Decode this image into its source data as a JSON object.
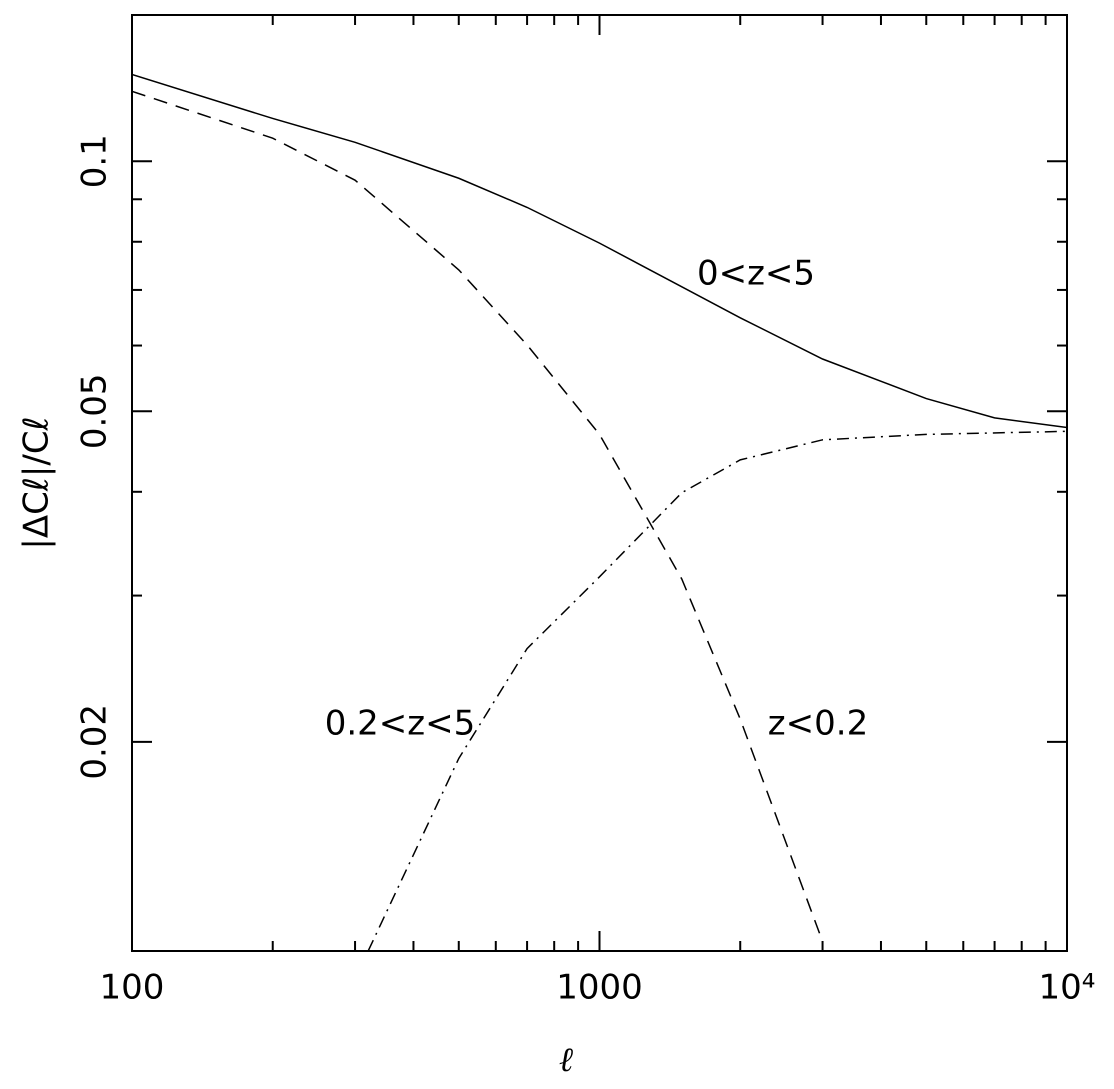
{
  "chart_data": {
    "type": "line",
    "xlabel": "ℓ",
    "ylabel": "|ΔCℓ|/Cℓ",
    "xscale": "log",
    "yscale": "log",
    "xlim": [
      100,
      10000
    ],
    "ylim": [
      0.0112,
      0.15
    ],
    "xticks": [
      100,
      1000,
      {
        "value": 10000,
        "label": "10⁴"
      }
    ],
    "xminorticks": [
      200,
      300,
      400,
      500,
      600,
      700,
      800,
      900,
      2000,
      3000,
      4000,
      5000,
      6000,
      7000,
      8000,
      9000
    ],
    "yticks": [
      0.02,
      0.05,
      0.1
    ],
    "yminorticks": [
      0.03,
      0.04,
      0.06,
      0.07,
      0.08,
      0.09
    ],
    "series": [
      {
        "name": "0<z<5",
        "color": "#000000",
        "linestyle": "solid",
        "x": [
          100,
          200,
          300,
          500,
          700,
          1000,
          1500,
          2000,
          3000,
          5000,
          7000,
          10000
        ],
        "values": [
          0.1272,
          0.1126,
          0.1054,
          0.0954,
          0.088,
          0.0797,
          0.0706,
          0.0648,
          0.0578,
          0.0518,
          0.0491,
          0.0478
        ]
      },
      {
        "name": "z<0.2",
        "color": "#000000",
        "linestyle": "dashed",
        "x": [
          100,
          200,
          300,
          500,
          700,
          1000,
          1500,
          2000,
          3000
        ],
        "values": [
          0.1214,
          0.1066,
          0.0949,
          0.074,
          0.0601,
          0.0469,
          0.0314,
          0.0213,
          0.0115
        ]
      },
      {
        "name": "0.2<z<5",
        "color": "#000000",
        "linestyle": "dashdot",
        "x": [
          320,
          500,
          700,
          1000,
          1500,
          2000,
          3000,
          5000,
          10000
        ],
        "values": [
          0.0112,
          0.0191,
          0.0259,
          0.0316,
          0.0399,
          0.0437,
          0.0462,
          0.0469,
          0.0473
        ]
      }
    ]
  }
}
